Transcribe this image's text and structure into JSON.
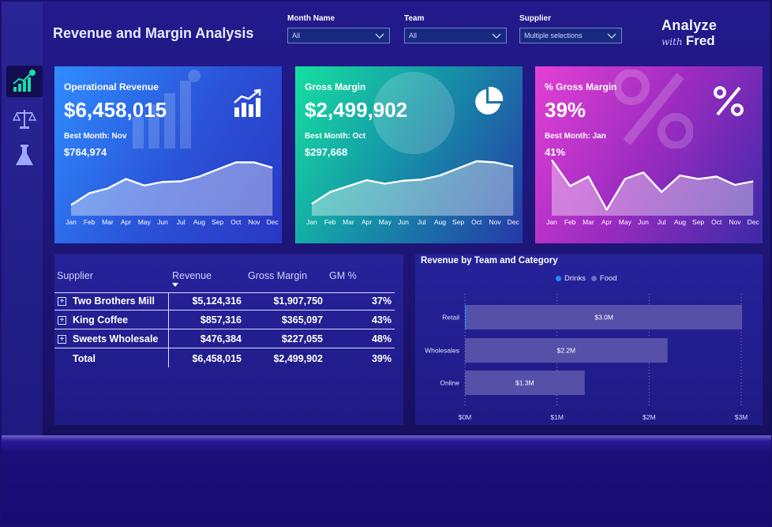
{
  "page": {
    "title": "Revenue and Margin Analysis"
  },
  "filters": [
    {
      "label": "Month Name",
      "value": "All"
    },
    {
      "label": "Team",
      "value": "All"
    },
    {
      "label": "Supplier",
      "value": "Multiple selections"
    }
  ],
  "logo": {
    "line1": "Analyze",
    "with": "with",
    "name": "Fred"
  },
  "sidebar": {
    "items": [
      "chart-growth-icon",
      "scale-balance-icon",
      "flask-icon"
    ]
  },
  "months": [
    "Jan",
    "Feb",
    "Mar",
    "Apr",
    "May",
    "Jun",
    "Jul",
    "Aug",
    "Sep",
    "Oct",
    "Nov",
    "Dec"
  ],
  "cards": [
    {
      "label": "Operational Revenue",
      "value": "$6,458,015",
      "best_label": "Best Month: Nov",
      "best_value": "$764,974",
      "icon": "bar-chart-icon",
      "trend": [
        0.18,
        0.38,
        0.46,
        0.62,
        0.51,
        0.57,
        0.58,
        0.66,
        0.78,
        0.9,
        0.9,
        0.81
      ]
    },
    {
      "label": "Gross Margin",
      "value": "$2,499,902",
      "best_label": "Best Month: Oct",
      "best_value": "$297,668",
      "icon": "pie-chart-icon",
      "trend": [
        0.2,
        0.4,
        0.5,
        0.6,
        0.54,
        0.59,
        0.61,
        0.68,
        0.8,
        0.92,
        0.9,
        0.83
      ]
    },
    {
      "label": "% Gross Margin",
      "value": "39%",
      "best_label": "Best Month: Jan",
      "best_value": "41%",
      "icon": "percent-icon",
      "trend": [
        0.94,
        0.5,
        0.66,
        0.1,
        0.62,
        0.73,
        0.4,
        0.68,
        0.62,
        0.66,
        0.52,
        0.58
      ]
    }
  ],
  "table": {
    "headers": [
      "Supplier",
      "Revenue",
      "Gross Margin",
      "GM %"
    ],
    "rows": [
      {
        "supplier": "Two Brothers Mill",
        "revenue": "$5,124,316",
        "margin": "$1,907,750",
        "gm": "37%"
      },
      {
        "supplier": "King Coffee",
        "revenue": "$857,316",
        "margin": "$365,097",
        "gm": "43%"
      },
      {
        "supplier": "Sweets Wholesale",
        "revenue": "$476,384",
        "margin": "$227,055",
        "gm": "48%"
      }
    ],
    "total": {
      "supplier": "Total",
      "revenue": "$6,458,015",
      "margin": "$2,499,902",
      "gm": "39%"
    }
  },
  "colors": {
    "drinks": "#1f8bff",
    "food": "#6f6fc3",
    "bar": "#5650a8"
  },
  "chart_data": {
    "type": "bar",
    "orientation": "horizontal",
    "title": "Revenue by Team and Category",
    "legend": [
      "Drinks",
      "Food"
    ],
    "categories": [
      "Retail",
      "Wholesales",
      "Online"
    ],
    "series": [
      {
        "name": "Drinks",
        "values": [
          0.01,
          0,
          0
        ]
      },
      {
        "name": "Food",
        "values": [
          3.0,
          2.2,
          1.3
        ]
      }
    ],
    "data_labels": [
      "$3.0M",
      "$2.2M",
      "$1.3M"
    ],
    "xticks": [
      "$0M",
      "$1M",
      "$2M",
      "$3M"
    ],
    "xlim": [
      0,
      3
    ],
    "xlabel": "",
    "ylabel": ""
  }
}
